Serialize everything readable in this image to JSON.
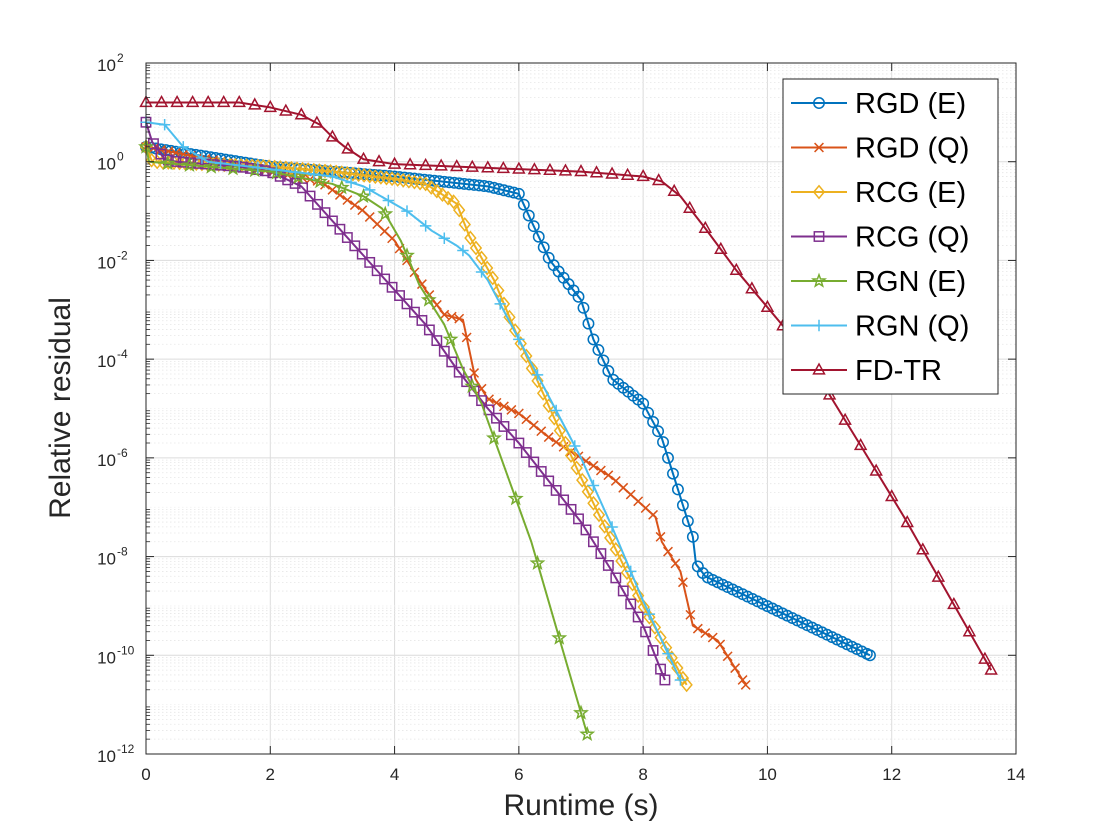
{
  "chart_data": {
    "type": "line",
    "title": "",
    "xlabel": "Runtime (s)",
    "ylabel": "Relative residual",
    "yscale": "log",
    "xlim": [
      0,
      14
    ],
    "ylim_exponent": [
      -12,
      2
    ],
    "xticks": [
      0,
      2,
      4,
      6,
      8,
      10,
      12,
      14
    ],
    "xtick_labels": [
      "0",
      "2",
      "4",
      "6",
      "8",
      "10",
      "12",
      "14"
    ],
    "yticks": [
      -12,
      -10,
      -8,
      -6,
      -4,
      -2,
      0,
      2
    ],
    "ytick_labels": [
      {
        "base": "10",
        "exp": "-12"
      },
      {
        "base": "10",
        "exp": "-10"
      },
      {
        "base": "10",
        "exp": "-8"
      },
      {
        "base": "10",
        "exp": "-6"
      },
      {
        "base": "10",
        "exp": "-4"
      },
      {
        "base": "10",
        "exp": "-2"
      },
      {
        "base": "10",
        "exp": "0"
      },
      {
        "base": "10",
        "exp": "2"
      }
    ],
    "grid": true,
    "minor_grid": true,
    "legend_position": "top-right",
    "note": "series values are log10 of the relative residual",
    "series": [
      {
        "name": "RGD (E)",
        "color": "#0072BD",
        "marker": "circle",
        "x": [
          0.0,
          2.0,
          4.0,
          5.5,
          6.0,
          6.2,
          6.5,
          7.0,
          7.2,
          7.5,
          8.0,
          8.3,
          8.6,
          8.8,
          8.85,
          9.0,
          11.65
        ],
        "y": [
          0.3,
          -0.1,
          -0.3,
          -0.5,
          -0.65,
          -1.2,
          -2.0,
          -2.8,
          -3.6,
          -4.4,
          -4.9,
          -5.6,
          -6.8,
          -7.6,
          -8.15,
          -8.4,
          -10.0
        ],
        "sample_every": 0.08
      },
      {
        "name": "RGD (Q)",
        "color": "#D95319",
        "marker": "x",
        "x": [
          0.0,
          2.0,
          2.8,
          3.5,
          4.0,
          4.5,
          4.8,
          5.1,
          5.3,
          5.5,
          6.0,
          6.5,
          7.0,
          7.5,
          8.2,
          8.3,
          8.5,
          8.6,
          8.8,
          9.2,
          9.5,
          9.65
        ],
        "y": [
          0.3,
          -0.2,
          -0.4,
          -1.0,
          -1.6,
          -2.6,
          -3.1,
          -3.2,
          -4.4,
          -4.8,
          -5.1,
          -5.6,
          -6.0,
          -6.4,
          -7.2,
          -7.7,
          -8.1,
          -8.3,
          -9.4,
          -9.7,
          -10.3,
          -10.6
        ],
        "sample_every": 0.12
      },
      {
        "name": "RCG (E)",
        "color": "#EDB120",
        "marker": "diamond",
        "x": [
          0.0,
          0.1,
          1.0,
          2.0,
          3.0,
          4.0,
          4.5,
          5.0,
          5.2,
          5.6,
          6.0,
          6.5,
          7.0,
          7.5,
          8.0,
          8.7
        ],
        "y": [
          0.3,
          0.0,
          -0.05,
          -0.1,
          -0.2,
          -0.35,
          -0.45,
          -0.85,
          -1.5,
          -2.4,
          -3.6,
          -5.0,
          -6.4,
          -7.7,
          -9.0,
          -10.6
        ],
        "sample_every": 0.09
      },
      {
        "name": "RCG (Q)",
        "color": "#7E2F8E",
        "marker": "square",
        "x": [
          0.0,
          0.1,
          0.3,
          0.5,
          1.5,
          2.0,
          2.5,
          3.0,
          3.5,
          4.0,
          4.5,
          5.0,
          5.5,
          6.0,
          6.5,
          7.0,
          7.5,
          8.0,
          8.35
        ],
        "y": [
          0.8,
          0.4,
          0.05,
          0.0,
          -0.1,
          -0.2,
          -0.5,
          -1.2,
          -1.9,
          -2.6,
          -3.3,
          -4.2,
          -5.0,
          -5.7,
          -6.5,
          -7.3,
          -8.3,
          -9.4,
          -10.5
        ],
        "sample_every": 0.12
      },
      {
        "name": "RGN (E)",
        "color": "#77AC30",
        "marker": "star",
        "x": [
          0.0,
          0.05,
          0.5,
          1.0,
          2.0,
          3.0,
          3.5,
          3.8,
          4.1,
          4.4,
          4.8,
          5.1,
          5.4,
          5.8,
          6.2,
          7.1
        ],
        "y": [
          0.3,
          0.0,
          -0.05,
          -0.1,
          -0.2,
          -0.45,
          -0.7,
          -0.95,
          -1.6,
          -2.5,
          -3.3,
          -4.2,
          -4.9,
          -6.3,
          -7.7,
          -11.6
        ],
        "sample_every": 0.35
      },
      {
        "name": "RGN (Q)",
        "color": "#4DBEEE",
        "marker": "plus",
        "x": [
          0.0,
          0.3,
          0.6,
          1.0,
          2.0,
          3.0,
          3.5,
          4.2,
          4.6,
          5.0,
          5.2,
          5.5,
          6.0,
          6.5,
          7.0,
          7.5,
          8.0,
          8.6
        ],
        "y": [
          0.8,
          0.75,
          0.3,
          0.0,
          -0.15,
          -0.3,
          -0.5,
          -1.0,
          -1.4,
          -1.7,
          -1.9,
          -2.4,
          -3.6,
          -4.8,
          -6.0,
          -7.4,
          -8.9,
          -10.5
        ],
        "sample_every": 0.3
      },
      {
        "name": "FD-TR",
        "color": "#A2142F",
        "marker": "triangle",
        "x": [
          0.0,
          0.5,
          1.0,
          1.5,
          2.0,
          2.5,
          2.8,
          3.0,
          3.2,
          3.5,
          4.0,
          5.0,
          6.0,
          7.0,
          7.5,
          8.0,
          8.3,
          8.6,
          9.0,
          9.5,
          10.5,
          11.5,
          12.2,
          13.6
        ],
        "y": [
          1.2,
          1.2,
          1.2,
          1.2,
          1.1,
          0.95,
          0.75,
          0.5,
          0.3,
          0.05,
          -0.05,
          -0.1,
          -0.15,
          -0.2,
          -0.25,
          -0.3,
          -0.4,
          -0.7,
          -1.35,
          -2.2,
          -3.7,
          -5.75,
          -7.2,
          -10.3
        ],
        "sample_every": 0.25
      }
    ]
  }
}
